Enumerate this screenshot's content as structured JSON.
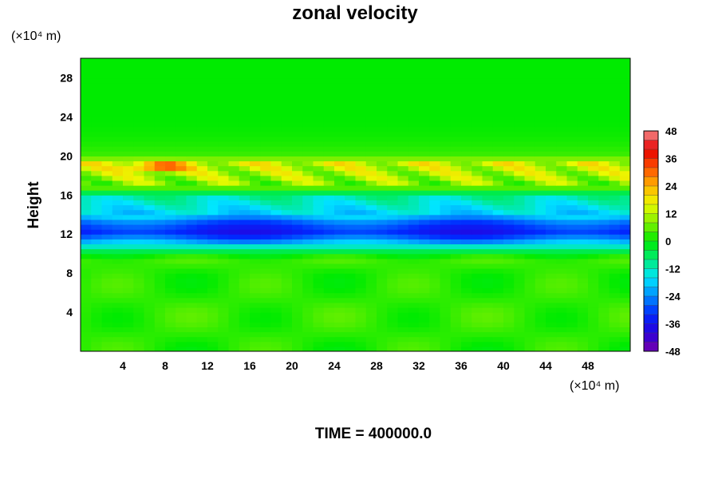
{
  "chart_data": {
    "type": "heatmap",
    "title": "zonal velocity",
    "xlabel": "",
    "ylabel": "Height",
    "x_unit": "(×10⁴ m)",
    "y_unit": "(×10⁴ m)",
    "footer": "TIME = 400000.0",
    "xlim": [
      0,
      52
    ],
    "ylim": [
      0,
      30
    ],
    "x_ticks": [
      "4",
      "8",
      "12",
      "16",
      "20",
      "24",
      "28",
      "32",
      "36",
      "40",
      "44",
      "48"
    ],
    "y_ticks": [
      "4",
      "8",
      "12",
      "16",
      "20",
      "24",
      "28"
    ],
    "colorbar": {
      "min": -48,
      "max": 48,
      "step": 4,
      "ticks": [
        "48",
        "36",
        "24",
        "12",
        "0",
        "-12",
        "-24",
        "-36",
        "-48"
      ]
    },
    "approx_mean_profile": {
      "height": [
        0,
        4,
        8,
        9.5,
        10.5,
        11.5,
        12.3,
        13.2,
        14,
        15,
        16,
        16.8,
        17.5,
        18.5,
        19.3,
        20,
        24,
        30
      ],
      "velocity": [
        2,
        3,
        2,
        4,
        -8,
        -26,
        -34,
        -28,
        -18,
        -14,
        -10,
        6,
        10,
        12,
        14,
        4,
        0,
        0
      ]
    }
  }
}
